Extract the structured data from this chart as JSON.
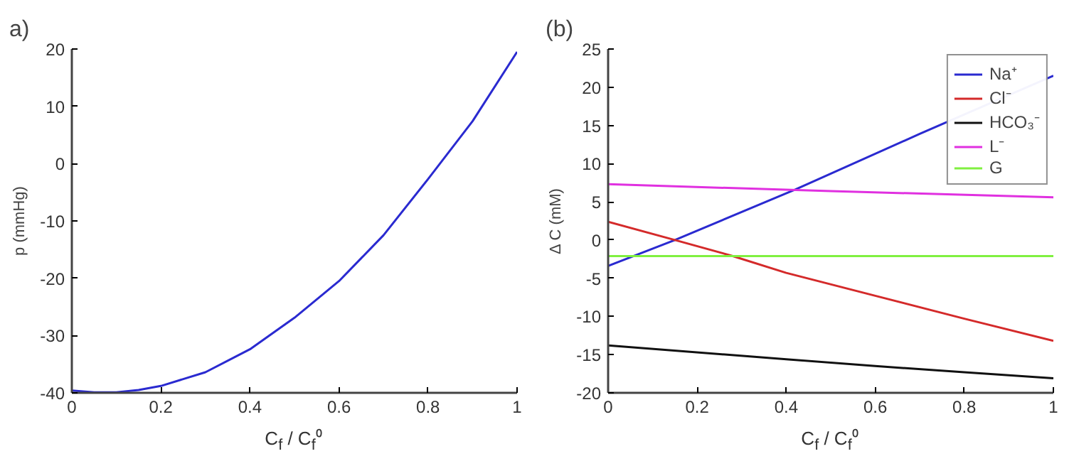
{
  "chart_data": [
    {
      "type": "line",
      "title": "a)",
      "xlabel": "C$_{f}$ / C$_{f}$⁰",
      "ylabel": "p (mmHg)",
      "xlim": [
        0,
        1
      ],
      "ylim": [
        -40,
        20
      ],
      "xticks": [
        0,
        0.2,
        0.4,
        0.6,
        0.8,
        1
      ],
      "yticks": [
        -40,
        -30,
        -20,
        -10,
        0,
        10,
        20
      ],
      "grid": false,
      "legend": false,
      "x": [
        0,
        0.05,
        0.1,
        0.15,
        0.2,
        0.3,
        0.4,
        0.5,
        0.6,
        0.7,
        0.8,
        0.9,
        1
      ],
      "series": [
        {
          "color": "#2a2ad0",
          "values": [
            -39.6,
            -39.9,
            -39.9,
            -39.5,
            -38.8,
            -36.4,
            -32.4,
            -26.9,
            -20.5,
            -12.5,
            -2.7,
            7.4,
            19.5
          ]
        }
      ]
    },
    {
      "type": "line",
      "title": "(b)",
      "xlabel": "C$_{f}$ / C$_{f}$⁰",
      "ylabel": "Δ C (mM)",
      "xlim": [
        0,
        1
      ],
      "ylim": [
        -20,
        25
      ],
      "xticks": [
        0,
        0.2,
        0.4,
        0.6,
        0.8,
        1
      ],
      "yticks": [
        -20,
        -15,
        -10,
        -5,
        0,
        5,
        10,
        15,
        20,
        25
      ],
      "grid": false,
      "legend": "top right",
      "series": [
        {
          "name": "Na⁺",
          "color": "#2a2ad0",
          "x": [
            0,
            0.15,
            0.42,
            0.7,
            1
          ],
          "values": [
            -3.4,
            0,
            6.6,
            13.9,
            21.5
          ]
        },
        {
          "name": "Cl⁻",
          "color": "#d42a2a",
          "x": [
            0,
            0.15,
            0.28,
            0.4,
            0.6,
            0.8,
            1
          ],
          "values": [
            2.4,
            0,
            -2.1,
            -4.3,
            -7.3,
            -10.3,
            -13.2
          ]
        },
        {
          "name": "HCO₃⁻",
          "color": "#101010",
          "x": [
            0,
            0.4,
            0.6,
            0.8,
            1
          ],
          "values": [
            -13.8,
            -15.6,
            -16.5,
            -17.3,
            -18.1
          ]
        },
        {
          "name": "L⁻",
          "color": "#e030e0",
          "x": [
            0,
            0.5,
            1
          ],
          "values": [
            7.3,
            6.4,
            5.6
          ]
        },
        {
          "name": "G",
          "color": "#80f040",
          "x": [
            0,
            1
          ],
          "values": [
            -2.1,
            -2.1
          ]
        }
      ]
    }
  ]
}
